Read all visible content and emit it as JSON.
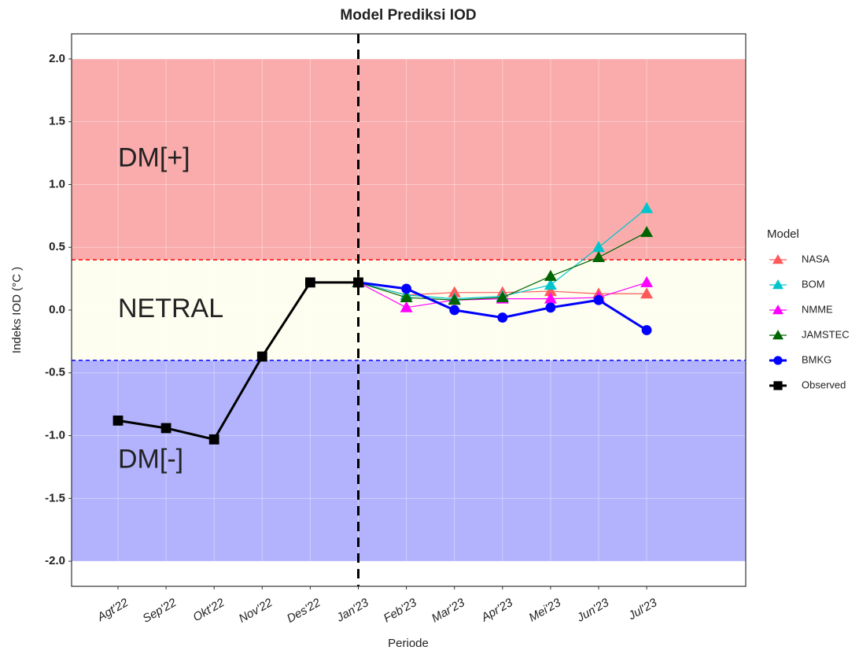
{
  "chart_data": {
    "type": "line",
    "title": "Model Prediksi IOD",
    "x_label": "Periode",
    "y_label": "Indeks IOD (°C )",
    "legend_title": "Model",
    "legend_position": "right",
    "categories": [
      "Agt'22",
      "Sep'22",
      "Okt'22",
      "Nov'22",
      "Des'22",
      "Jan'23",
      "Feb'23",
      "Mar'23",
      "Apr'23",
      "Mei'23",
      "Jun'23",
      "Jul'23"
    ],
    "ylim": [
      -2.2,
      2.2
    ],
    "yticks": [
      {
        "value": -2,
        "label": "-2.0"
      },
      -1.5,
      {
        "value": -1,
        "label": "-1.0"
      },
      -0.5,
      {
        "value": 0,
        "label": "0.0"
      },
      0.5,
      {
        "value": 1,
        "label": "1.0"
      },
      1.5,
      {
        "value": 2,
        "label": "2.0"
      }
    ],
    "grid": true,
    "regions": [
      {
        "label": "DM[+]",
        "from": 0.4,
        "to": 2,
        "color": "#faacac",
        "line_color": "#ff0000"
      },
      {
        "label": "NETRAL",
        "from": -0.4,
        "to": 0.4,
        "color": "#fdfdf0"
      },
      {
        "label": "DM[-]",
        "from": -2,
        "to": -0.4,
        "color": "#b3b3fd",
        "line_color": "#0000ff"
      }
    ],
    "reference_category": "Jan'23",
    "series": [
      {
        "name": "NASA",
        "color": "#ff5a5a",
        "marker": "triangle",
        "values": [
          null,
          null,
          null,
          null,
          null,
          0.22,
          0.12,
          0.14,
          0.14,
          0.15,
          0.13,
          0.13
        ]
      },
      {
        "name": "BOM",
        "color": "#00c5cd",
        "marker": "triangle",
        "values": [
          null,
          null,
          null,
          null,
          null,
          0.22,
          0.12,
          0.09,
          0.11,
          0.2,
          0.5,
          0.81
        ]
      },
      {
        "name": "NMME",
        "color": "#ff00ff",
        "marker": "triangle",
        "values": [
          null,
          null,
          null,
          null,
          null,
          0.22,
          0.02,
          0.08,
          0.09,
          0.09,
          0.1,
          0.22
        ]
      },
      {
        "name": "JAMSTEC",
        "color": "#006400",
        "marker": "triangle",
        "values": [
          null,
          null,
          null,
          null,
          null,
          0.22,
          0.1,
          0.08,
          0.1,
          0.27,
          0.42,
          0.62
        ]
      },
      {
        "name": "BMKG",
        "color": "#0000ff",
        "marker": "circle",
        "values": [
          null,
          null,
          null,
          null,
          null,
          0.22,
          0.17,
          0.0,
          -0.06,
          0.02,
          0.08,
          -0.16
        ]
      },
      {
        "name": "Observed",
        "color": "#000000",
        "marker": "square",
        "values": [
          -0.88,
          -0.94,
          -1.03,
          -0.37,
          0.22,
          0.22,
          null,
          null,
          null,
          null,
          null,
          null
        ]
      }
    ]
  }
}
